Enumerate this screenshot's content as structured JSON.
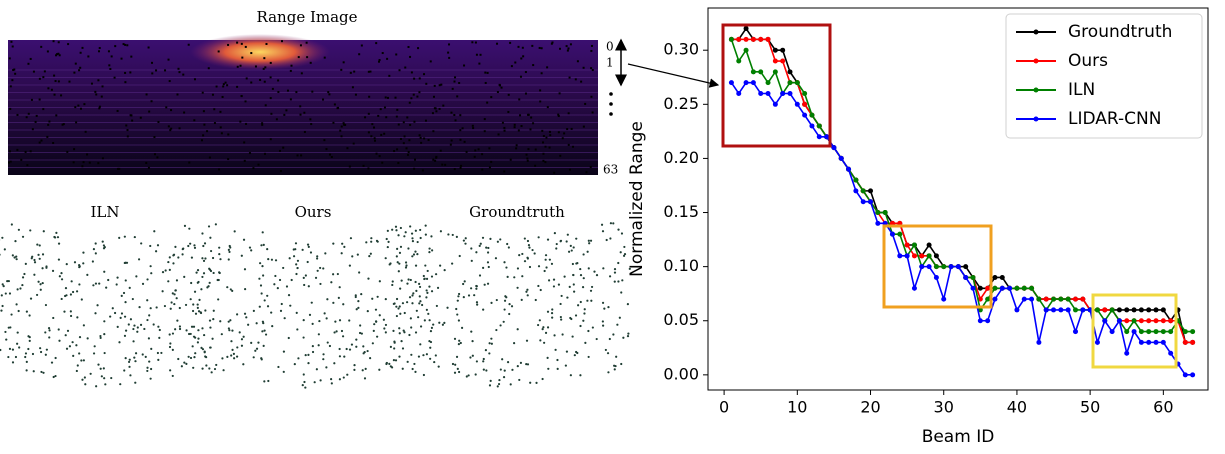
{
  "figure": {
    "range_title": "Range Image",
    "beam_labels": [
      "0",
      "1",
      "63"
    ],
    "cloud_titles": [
      "ILN",
      "Ours",
      "Groundtruth"
    ]
  },
  "chart_data": {
    "type": "line",
    "xlabel": "Beam ID",
    "ylabel": "Normalized Range",
    "x": [
      1,
      2,
      3,
      4,
      5,
      6,
      7,
      8,
      9,
      10,
      11,
      12,
      13,
      14,
      15,
      16,
      17,
      18,
      19,
      20,
      21,
      22,
      23,
      24,
      25,
      26,
      27,
      28,
      29,
      30,
      31,
      32,
      33,
      34,
      35,
      36,
      37,
      38,
      39,
      40,
      41,
      42,
      43,
      44,
      45,
      46,
      47,
      48,
      49,
      50,
      51,
      52,
      53,
      54,
      55,
      56,
      57,
      58,
      59,
      60,
      61,
      62,
      63,
      64
    ],
    "series": [
      {
        "name": "Groundtruth",
        "color": "#000000",
        "values": [
          0.31,
          0.31,
          0.32,
          0.31,
          0.31,
          0.31,
          0.3,
          0.3,
          0.28,
          0.27,
          0.25,
          0.24,
          0.23,
          0.22,
          0.21,
          0.2,
          0.19,
          0.18,
          0.17,
          0.17,
          0.15,
          0.15,
          0.14,
          0.14,
          0.12,
          0.12,
          0.11,
          0.12,
          0.11,
          0.1,
          0.1,
          0.1,
          0.1,
          0.09,
          0.08,
          0.08,
          0.09,
          0.09,
          0.08,
          0.08,
          0.08,
          0.08,
          0.07,
          0.07,
          0.07,
          0.07,
          0.07,
          0.07,
          0.07,
          0.06,
          0.06,
          0.06,
          0.06,
          0.06,
          0.06,
          0.06,
          0.06,
          0.06,
          0.06,
          0.06,
          0.05,
          0.06,
          0.03,
          0.03
        ]
      },
      {
        "name": "Ours",
        "color": "#ff0000",
        "values": [
          0.31,
          0.31,
          0.31,
          0.31,
          0.31,
          0.31,
          0.29,
          0.29,
          0.27,
          0.27,
          0.25,
          0.24,
          0.23,
          0.22,
          0.21,
          0.2,
          0.19,
          0.18,
          0.17,
          0.16,
          0.15,
          0.14,
          0.14,
          0.14,
          0.12,
          0.11,
          0.11,
          0.11,
          0.1,
          0.1,
          0.1,
          0.1,
          0.09,
          0.09,
          0.07,
          0.08,
          0.08,
          0.08,
          0.08,
          0.08,
          0.08,
          0.08,
          0.07,
          0.07,
          0.07,
          0.07,
          0.07,
          0.07,
          0.07,
          0.06,
          0.06,
          0.06,
          0.06,
          0.05,
          0.05,
          0.05,
          0.05,
          0.05,
          0.05,
          0.05,
          0.05,
          0.05,
          0.03,
          0.03
        ]
      },
      {
        "name": "ILN",
        "color": "#008000",
        "values": [
          0.31,
          0.29,
          0.3,
          0.28,
          0.28,
          0.27,
          0.28,
          0.26,
          0.27,
          0.27,
          0.26,
          0.24,
          0.23,
          0.22,
          0.21,
          0.2,
          0.19,
          0.18,
          0.17,
          0.16,
          0.15,
          0.15,
          0.13,
          0.13,
          0.11,
          0.12,
          0.1,
          0.11,
          0.1,
          0.1,
          0.1,
          0.1,
          0.09,
          0.09,
          0.06,
          0.07,
          0.08,
          0.08,
          0.08,
          0.08,
          0.08,
          0.08,
          0.07,
          0.06,
          0.07,
          0.07,
          0.07,
          0.06,
          0.06,
          0.06,
          0.06,
          0.05,
          0.06,
          0.05,
          0.04,
          0.05,
          0.04,
          0.04,
          0.04,
          0.04,
          0.04,
          0.05,
          0.04,
          0.04
        ]
      },
      {
        "name": "LIDAR-CNN",
        "color": "#0000ff",
        "values": [
          0.27,
          0.26,
          0.27,
          0.27,
          0.26,
          0.26,
          0.25,
          0.26,
          0.26,
          0.25,
          0.24,
          0.23,
          0.22,
          0.22,
          0.21,
          0.2,
          0.19,
          0.17,
          0.16,
          0.16,
          0.14,
          0.14,
          0.13,
          0.11,
          0.11,
          0.08,
          0.1,
          0.1,
          0.09,
          0.07,
          0.1,
          0.1,
          0.09,
          0.08,
          0.05,
          0.05,
          0.07,
          0.08,
          0.08,
          0.06,
          0.07,
          0.07,
          0.03,
          0.06,
          0.06,
          0.06,
          0.06,
          0.04,
          0.06,
          0.06,
          0.03,
          0.05,
          0.04,
          0.05,
          0.02,
          0.04,
          0.03,
          0.03,
          0.03,
          0.03,
          0.02,
          0.01,
          0.0,
          0.0
        ]
      }
    ],
    "xlim": [
      -2.2,
      66.1
    ],
    "ylim": [
      -0.014,
      0.339
    ],
    "xticks": [
      0,
      10,
      20,
      30,
      40,
      50,
      60
    ],
    "yticks": [
      {
        "value": 0,
        "label": "0.00"
      },
      {
        "value": 0.05,
        "label": "0.05"
      },
      {
        "value": 0.1,
        "label": "0.10"
      },
      {
        "value": 0.15,
        "label": "0.15"
      },
      {
        "value": 0.2,
        "label": "0.20"
      },
      {
        "value": 0.25,
        "label": "0.25"
      },
      {
        "value": 0.3,
        "label": "0.30"
      }
    ],
    "legend": "upper right"
  }
}
